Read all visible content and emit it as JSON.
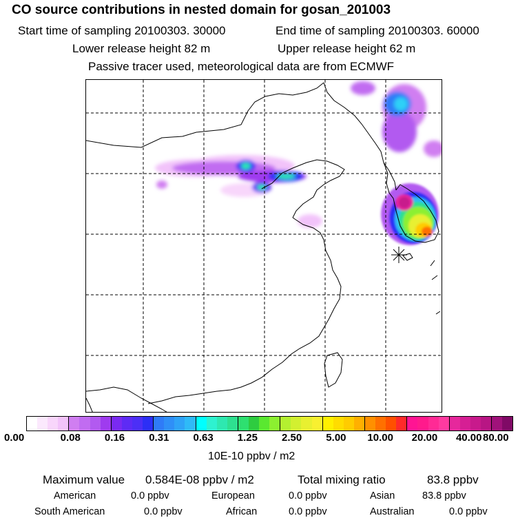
{
  "header": {
    "title": "CO  source contributions in nested domain for gosan_201003",
    "start_time": "Start time of sampling 20100303. 30000",
    "end_time": "End time of sampling 20100303. 60000",
    "lower_height": "Lower release height   82 m",
    "upper_height": "Upper release height   62 m",
    "tracer_note": "Passive tracer used, meteorological data are from ECMWF"
  },
  "colorbar": {
    "colors": [
      "#ffffff",
      "#fbe9fd",
      "#f8d6fb",
      "#f2c3fa",
      "#d07ef1",
      "#c16cf1",
      "#b25af0",
      "#9f3bef",
      "#7a2af2",
      "#5e2bf5",
      "#4c2ff6",
      "#2c2ff6",
      "#2f7bf7",
      "#2f8ff7",
      "#2fa3f7",
      "#2fbaf7",
      "#00ffff",
      "#2ef2d0",
      "#2ee8b0",
      "#2ee090",
      "#2ee070",
      "#2ecc40",
      "#5ae830",
      "#8cf030",
      "#b4f030",
      "#d2f030",
      "#e8f030",
      "#f8f030",
      "#fff000",
      "#ffdd00",
      "#ffcc00",
      "#ffb000",
      "#ff9000",
      "#ff7000",
      "#ff5000",
      "#ff2a2a",
      "#ff1493",
      "#ff1a8c",
      "#ff2a95",
      "#ff3aa0",
      "#e6289c",
      "#d61f94",
      "#c81a8c",
      "#b81684",
      "#a0127a",
      "#800a66"
    ],
    "tick_labels": [
      "0.00",
      "0.08",
      "0.16",
      "0.31",
      "0.63",
      "1.25",
      "2.50",
      "5.00",
      "10.00",
      "20.00",
      "40.00",
      "80.00"
    ],
    "units": "10E-10 ppbv / m2"
  },
  "summary": {
    "max_value_label": "Maximum value",
    "max_value": "0.584E-08 ppbv / m2",
    "total_label": "Total mixing ratio",
    "total_value": "83.8 ppbv"
  },
  "regions": [
    {
      "name": "American",
      "value": "0.0 ppbv"
    },
    {
      "name": "European",
      "value": "0.0 ppbv"
    },
    {
      "name": "Asian",
      "value": "83.8 ppbv"
    },
    {
      "name": "South American",
      "value": "0.0 ppbv"
    },
    {
      "name": "African",
      "value": "0.0 ppbv"
    },
    {
      "name": "Australian",
      "value": "0.0 ppbv"
    }
  ]
}
